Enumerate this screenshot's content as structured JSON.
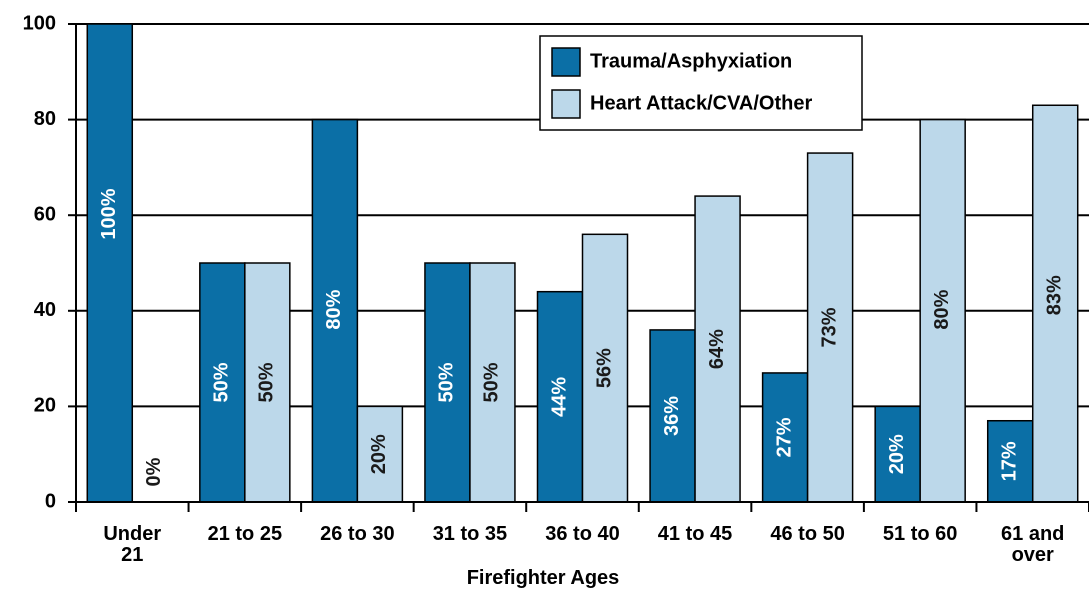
{
  "chart_data": {
    "type": "bar",
    "x_label": "Firefighter Ages",
    "categories": [
      "Under\n21",
      "21 to 25",
      "26 to 30",
      "31 to 35",
      "36 to 40",
      "41 to 45",
      "46 to 50",
      "51 to 60",
      "61 and\nover"
    ],
    "series": [
      {
        "name": "Trauma/Asphyxiation",
        "color": "#0b6fa6",
        "values": [
          100,
          50,
          80,
          50,
          44,
          36,
          27,
          20,
          17
        ],
        "value_labels": [
          "100%",
          "50%",
          "80%",
          "50%",
          "44%",
          "36%",
          "27%",
          "20%",
          "17%"
        ]
      },
      {
        "name": "Heart Attack/CVA/Other",
        "color": "#bcd8ea",
        "values": [
          0,
          50,
          20,
          50,
          56,
          64,
          73,
          80,
          83
        ],
        "value_labels": [
          "0%",
          "50%",
          "20%",
          "50%",
          "56%",
          "64%",
          "73%",
          "80%",
          "83%"
        ]
      }
    ],
    "ylim": [
      0,
      100
    ],
    "yticks": [
      0,
      20,
      40,
      60,
      80,
      100
    ],
    "grid": true,
    "legend": "top-right"
  }
}
